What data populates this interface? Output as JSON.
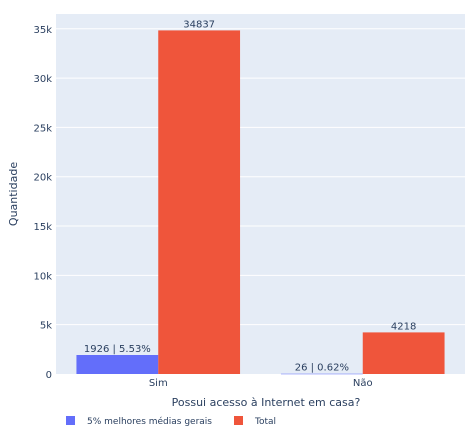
{
  "chart_data": {
    "type": "bar",
    "categories": [
      "Sim",
      "Não"
    ],
    "xlabel": "Possui acesso à Internet em casa?",
    "ylabel": "Quantidade",
    "ylim": [
      0,
      36500
    ],
    "yticks": [
      0,
      5000,
      10000,
      15000,
      20000,
      25000,
      30000,
      35000
    ],
    "ytick_labels": [
      "0",
      "5k",
      "10k",
      "15k",
      "20k",
      "25k",
      "30k",
      "35k"
    ],
    "grid": true,
    "legend_position": "bottom-left",
    "series": [
      {
        "name": "5% melhores médias gerais",
        "values": [
          1926,
          26
        ],
        "labels": [
          "1926 | 5.53%",
          "26 | 0.62%"
        ],
        "color": "#636efa"
      },
      {
        "name": "Total",
        "values": [
          34837,
          4218
        ],
        "labels": [
          "34837",
          "4218"
        ],
        "color": "#ef553b"
      }
    ]
  }
}
